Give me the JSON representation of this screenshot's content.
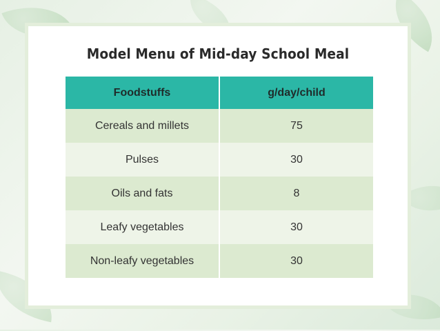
{
  "slide": {
    "title": "Model Menu of Mid-day School Meal"
  },
  "table": {
    "headers": [
      "Foodstuffs",
      "g/day/child"
    ],
    "rows": [
      {
        "food": "Cereals and millets",
        "amount": "75"
      },
      {
        "food": "Pulses",
        "amount": "30"
      },
      {
        "food": "Oils and fats",
        "amount": "8"
      },
      {
        "food": "Leafy vegetables",
        "amount": "30"
      },
      {
        "food": "Non-leafy vegetables",
        "amount": "30"
      }
    ]
  },
  "colors": {
    "header_bg": "#2bb7a6",
    "row_odd": "#dcead0",
    "row_even": "#eef4e8",
    "card_border": "#e3eedb"
  }
}
